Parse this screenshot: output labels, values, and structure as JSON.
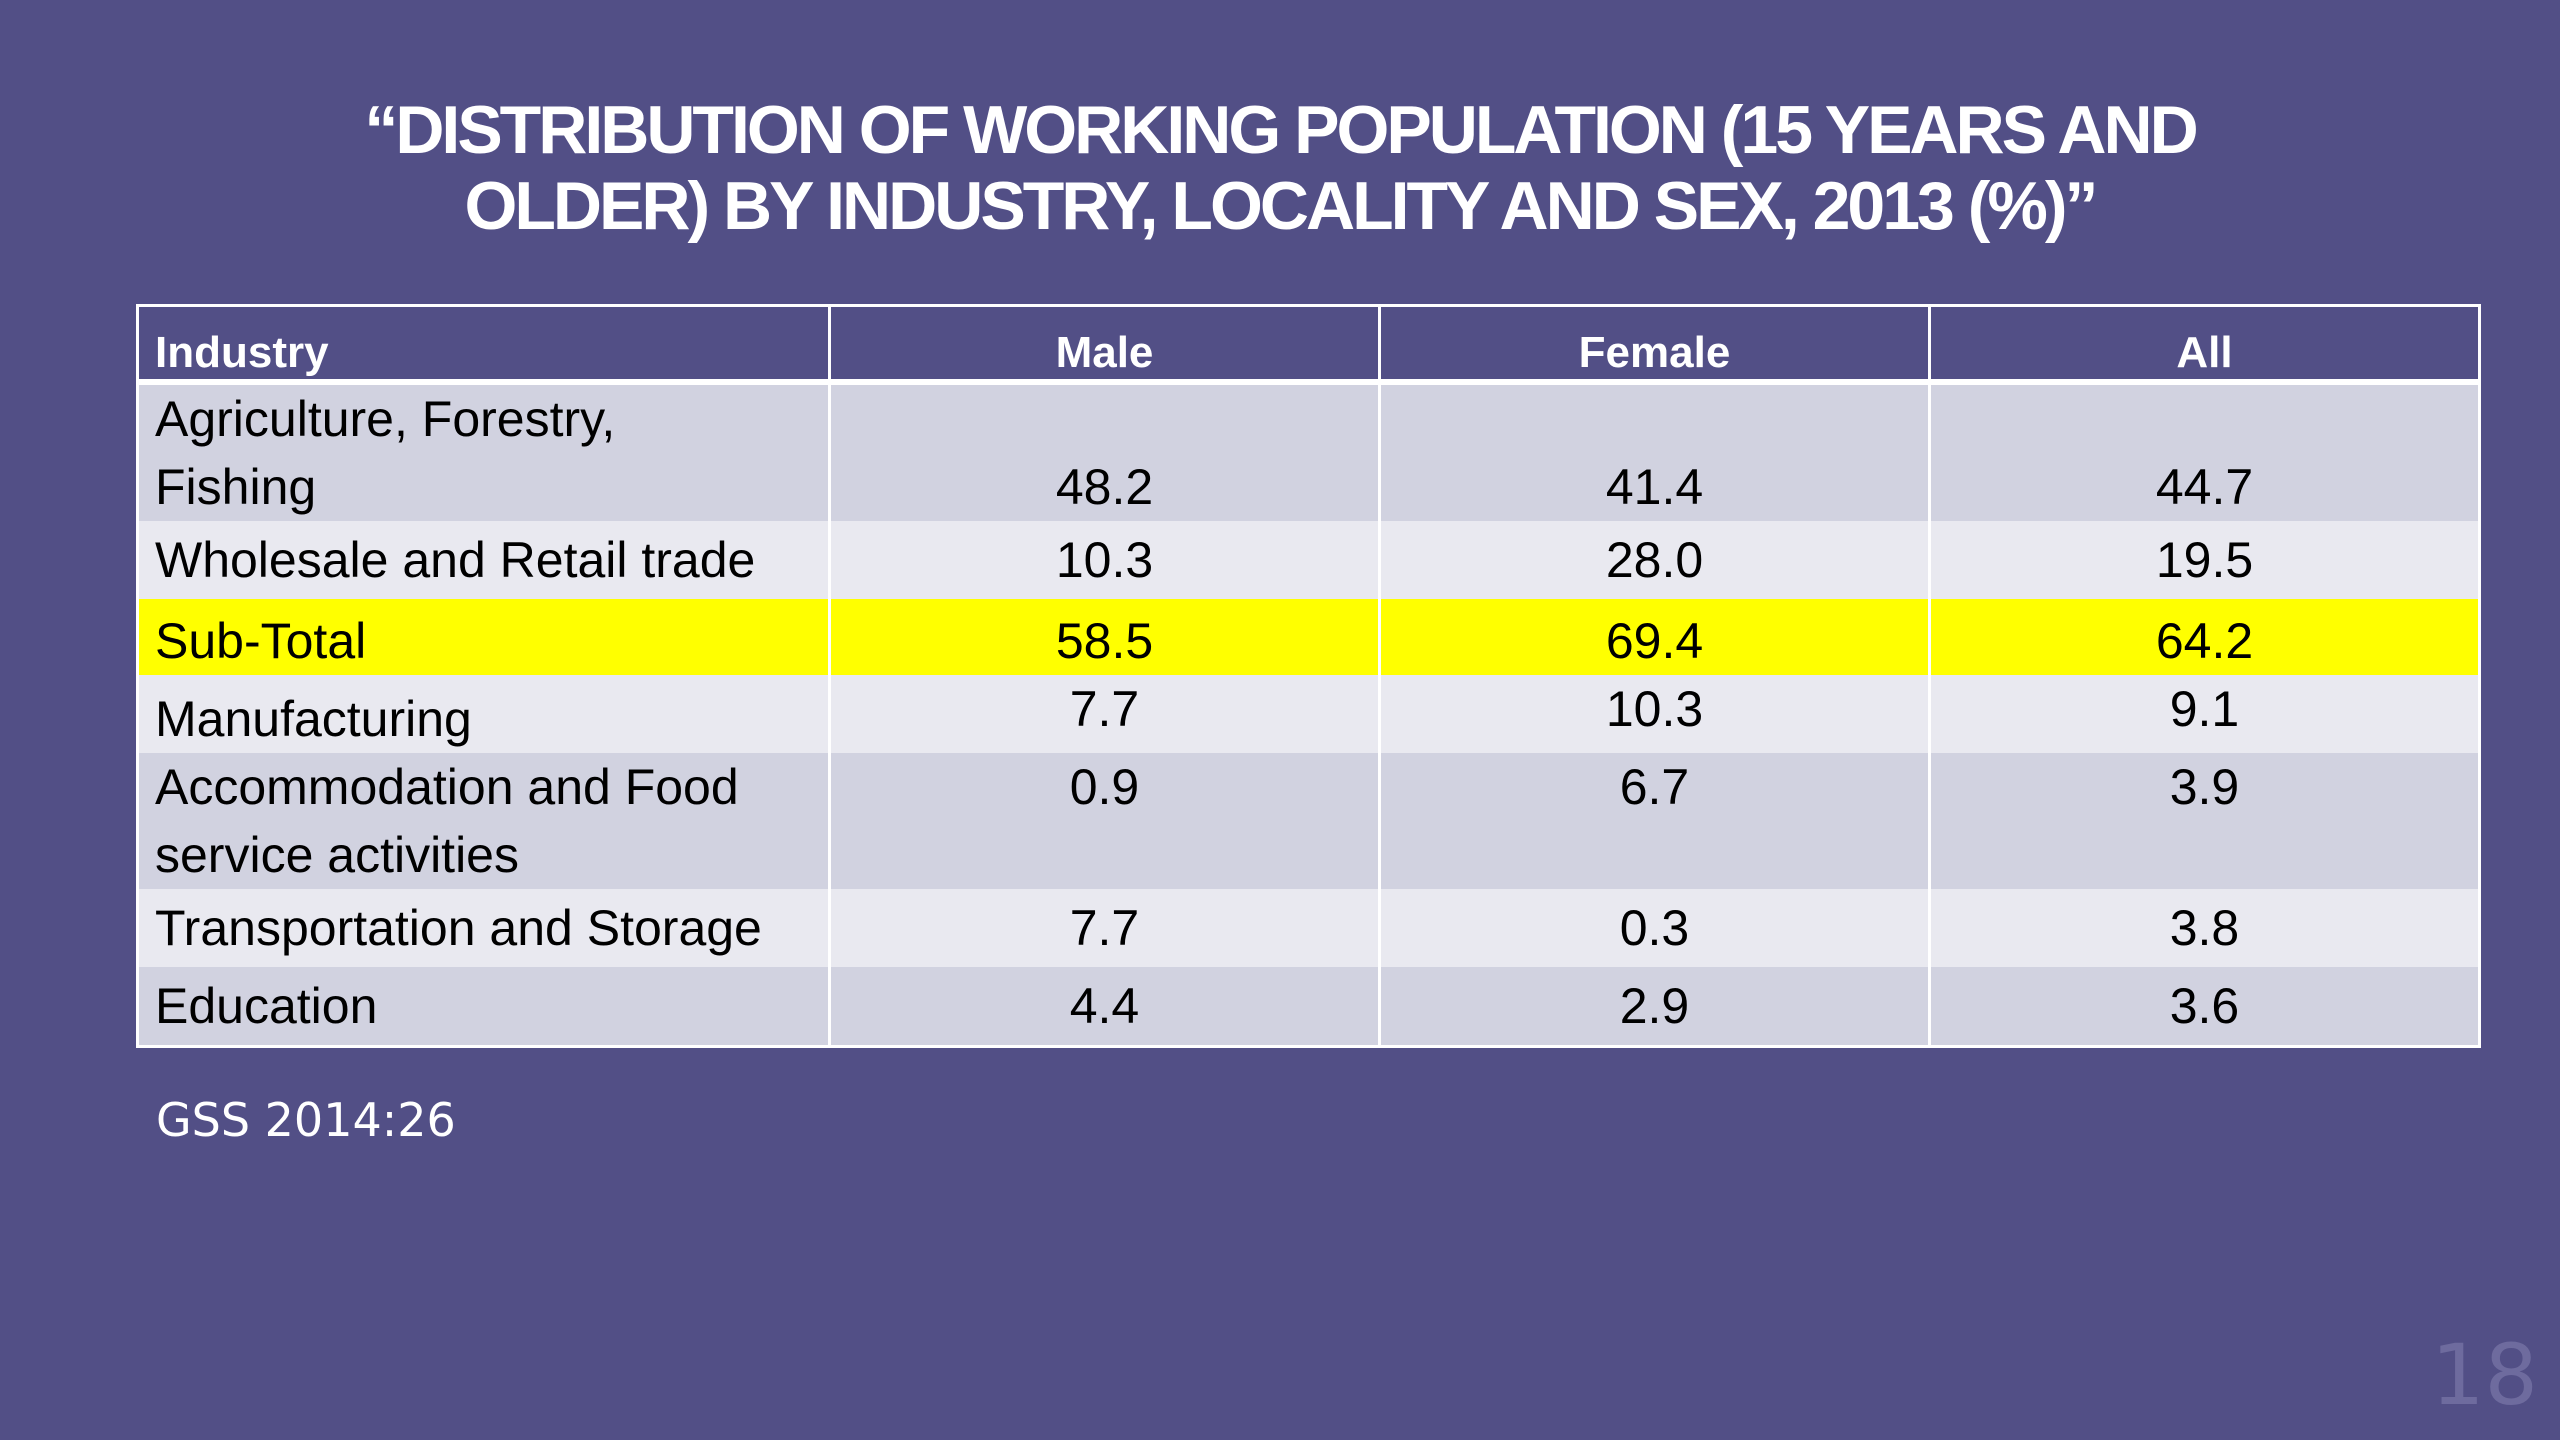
{
  "title": {
    "line1": "“DISTRIBUTION OF WORKING POPULATION (15 YEARS AND",
    "line2": "OLDER) BY INDUSTRY, LOCALITY AND SEX, 2013 (%)”"
  },
  "table": {
    "headers": [
      "Industry",
      "Male",
      "Female",
      "All"
    ],
    "rows": [
      {
        "industry": "Agriculture, Forestry, Fishing",
        "industry_line1": "Agriculture, Forestry,",
        "industry_line2": "Fishing",
        "male": "48.2",
        "female": "41.4",
        "all": "44.7"
      },
      {
        "industry": "Wholesale and Retail trade",
        "male": "10.3",
        "female": "28.0",
        "all": "19.5"
      },
      {
        "industry": "Sub-Total",
        "male": "58.5",
        "female": "69.4",
        "all": "64.2"
      },
      {
        "industry": "Manufacturing",
        "male": "7.7",
        "female": "10.3",
        "all": "9.1"
      },
      {
        "industry": "Accommodation and Food service activities",
        "industry_line1": "Accommodation and Food",
        "industry_line2": "service activities",
        "male": "0.9",
        "female": "6.7",
        "all": "3.9"
      },
      {
        "industry": "Transportation and Storage",
        "male": "7.7",
        "female": "0.3",
        "all": "3.8"
      },
      {
        "industry": "Education",
        "male": "4.4",
        "female": "2.9",
        "all": "3.6"
      }
    ]
  },
  "source": "GSS 2014:26",
  "page_number": "18",
  "colors": {
    "background": "#524f86",
    "row_dark": "#d1d2e0",
    "row_light": "#e9e9f0",
    "highlight": "#ffff00",
    "text_light": "#ffffff"
  }
}
